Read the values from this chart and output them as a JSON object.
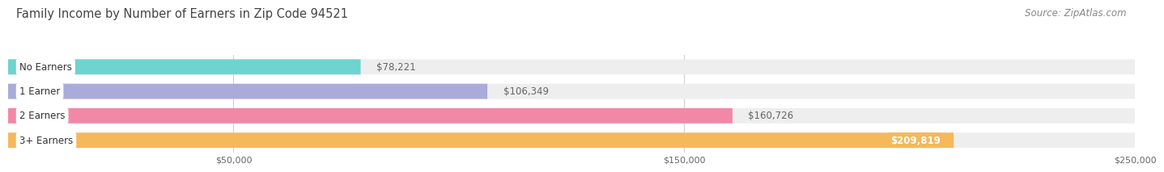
{
  "title": "Family Income by Number of Earners in Zip Code 94521",
  "source": "Source: ZipAtlas.com",
  "categories": [
    "No Earners",
    "1 Earner",
    "2 Earners",
    "3+ Earners"
  ],
  "values": [
    78221,
    106349,
    160726,
    209819
  ],
  "value_labels": [
    "$78,221",
    "$106,349",
    "$160,726",
    "$209,819"
  ],
  "bar_colors": [
    "#6dd4d0",
    "#aaaadb",
    "#f288a8",
    "#f5b85a"
  ],
  "bar_bg_color": "#eeeeee",
  "xlim": [
    0,
    250000
  ],
  "xticks": [
    50000,
    150000,
    250000
  ],
  "xtick_labels": [
    "$50,000",
    "$150,000",
    "$250,000"
  ],
  "title_fontsize": 10.5,
  "source_fontsize": 8.5,
  "label_fontsize": 8.5,
  "value_fontsize": 8.5,
  "bar_height": 0.62,
  "bar_gap": 0.18,
  "bg_color": "#ffffff",
  "title_color": "#444444",
  "source_color": "#888888",
  "grid_color": "#d0d0d0",
  "value_inside_color": "#ffffff",
  "value_outside_color": "#666666"
}
